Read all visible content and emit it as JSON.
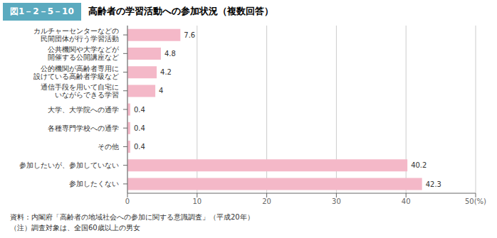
{
  "chart_data": {
    "type": "bar",
    "orientation": "horizontal",
    "title": "高齢者の学習活動への参加状況（複数回答）",
    "subtitle": "図1－2－5－10",
    "annotations": [
      "資料：内閣府「高齢者の地域社会への参加に関する意識調査」（平成20年）",
      "（注）調査対象は、全国60歳以上の男女"
    ],
    "categories": [
      "カルチャーセンターなどの\n民間団体が行う学習活動",
      "公共機関や大学などが\n開催する公開講座など",
      "公的機関が高齢者専用に\n設けている高齢者学級など",
      "通信手段を用いて自宅に\nいながらできる学習",
      "大学、大学院への通学",
      "各種専門学校への通学",
      "その他",
      "参加したいが、参加していない",
      "参加したくない"
    ],
    "values": [
      7.6,
      4.8,
      4.2,
      4.0,
      0.4,
      0.4,
      0.4,
      40.2,
      42.3
    ],
    "color": "#f4b8c8",
    "xlim": [
      0,
      50
    ],
    "xticks": [
      0,
      10,
      20,
      30,
      40,
      {
        "value": 50,
        "label": "50(%)"
      }
    ],
    "grid": true,
    "data_labels": true
  }
}
